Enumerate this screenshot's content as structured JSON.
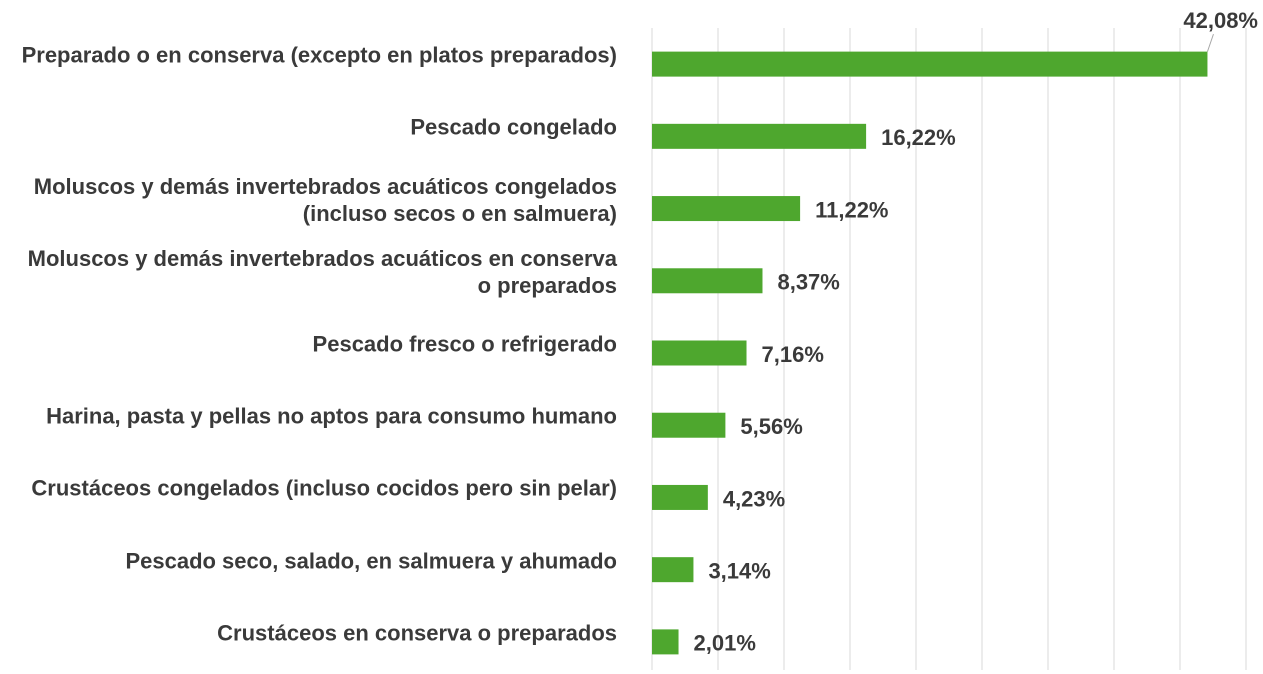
{
  "chart_data": {
    "type": "bar",
    "orientation": "horizontal",
    "categories": [
      "Preparado o en conserva (excepto en platos preparados)",
      "Pescado congelado",
      "Moluscos y demás invertebrados acuáticos congelados (incluso secos o en salmuera)",
      "Moluscos y demás invertebrados acuáticos en conserva o preparados",
      "Pescado fresco o refrigerado",
      "Harina, pasta y pellas no aptos para consumo humano",
      "Crustáceos congelados (incluso cocidos pero sin pelar)",
      "Pescado seco, salado, en salmuera y ahumado",
      "Crustáceos en conserva o preparados"
    ],
    "values": [
      42.08,
      16.22,
      11.22,
      8.37,
      7.16,
      5.56,
      4.23,
      3.14,
      2.01
    ],
    "value_labels": [
      "42,08%",
      "16,22%",
      "11,22%",
      "8,37%",
      "7,16%",
      "5,56%",
      "4,23%",
      "3,14%",
      "2,01%"
    ],
    "color": "#4ea72e",
    "xlim": [
      0,
      45
    ],
    "xticks": [
      0,
      5,
      10,
      15,
      20,
      25,
      30,
      35,
      40,
      45
    ],
    "grid": true
  }
}
